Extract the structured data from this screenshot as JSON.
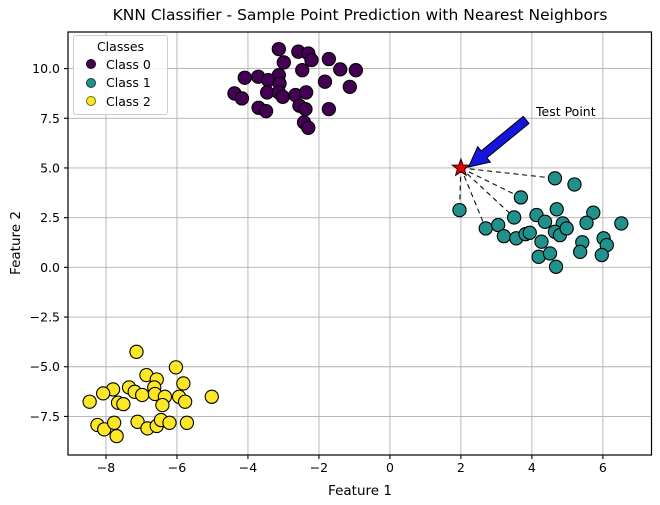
{
  "figure": {
    "title": "KNN Classifier - Sample Point Prediction with Nearest Neighbors"
  },
  "chart_data": {
    "type": "scatter",
    "title": "KNN Classifier - Sample Point Prediction with Nearest Neighbors",
    "xlabel": "Feature 1",
    "ylabel": "Feature 2",
    "xlim": [
      -9.07,
      7.37
    ],
    "ylim": [
      -9.44,
      11.84
    ],
    "grid": true,
    "grid_color": "#b0b0b0",
    "spine_color": "#000000",
    "x_ticks": {
      "values": [
        -8,
        -6,
        -4,
        -2,
        0,
        2,
        4,
        6
      ],
      "labels": [
        "−8",
        "−6",
        "−4",
        "−2",
        "0",
        "2",
        "4",
        "6"
      ]
    },
    "y_ticks": {
      "values": [
        10.0,
        7.5,
        5.0,
        2.5,
        0.0,
        -2.5,
        -5.0,
        -7.5
      ],
      "labels": [
        "10.0",
        "7.5",
        "5.0",
        "2.5",
        "0.0",
        "−2.5",
        "−5.0",
        "−7.5"
      ]
    },
    "legend": {
      "title": "Classes",
      "position": "upper left",
      "entries": [
        {
          "label": "Class 0",
          "color": "#440154"
        },
        {
          "label": "Class 1",
          "color": "#21918c"
        },
        {
          "label": "Class 2",
          "color": "#fde725"
        }
      ]
    },
    "series": [
      {
        "name": "Class 0",
        "color": "#440154",
        "marker": "circle",
        "edge_color": "#000000",
        "points": [
          [
            -3.13,
            10.98
          ],
          [
            -2.58,
            10.85
          ],
          [
            -2.3,
            10.76
          ],
          [
            -2.21,
            10.43
          ],
          [
            -1.72,
            10.48
          ],
          [
            -2.99,
            10.31
          ],
          [
            -2.47,
            9.92
          ],
          [
            -1.4,
            9.96
          ],
          [
            -0.96,
            9.92
          ],
          [
            -4.09,
            9.54
          ],
          [
            -3.71,
            9.59
          ],
          [
            -3.13,
            9.67
          ],
          [
            -3.43,
            9.42
          ],
          [
            -3.11,
            9.25
          ],
          [
            -1.83,
            9.34
          ],
          [
            -1.13,
            9.08
          ],
          [
            -4.38,
            8.75
          ],
          [
            -4.17,
            8.5
          ],
          [
            -3.46,
            8.8
          ],
          [
            -3.13,
            8.8
          ],
          [
            -3.02,
            8.58
          ],
          [
            -2.66,
            8.67
          ],
          [
            -2.36,
            8.8
          ],
          [
            -3.7,
            8.03
          ],
          [
            -3.49,
            7.86
          ],
          [
            -2.55,
            8.13
          ],
          [
            -2.38,
            7.96
          ],
          [
            -1.72,
            7.96
          ],
          [
            -2.42,
            7.29
          ],
          [
            -2.3,
            7.02
          ]
        ]
      },
      {
        "name": "Class 1",
        "color": "#21918c",
        "marker": "circle",
        "edge_color": "#000000",
        "points": [
          [
            1.96,
            2.88
          ],
          [
            2.7,
            1.96
          ],
          [
            3.05,
            2.13
          ],
          [
            3.5,
            2.51
          ],
          [
            3.69,
            3.52
          ],
          [
            4.65,
            4.48
          ],
          [
            5.2,
            4.17
          ],
          [
            4.7,
            2.92
          ],
          [
            5.73,
            2.75
          ],
          [
            5.54,
            2.24
          ],
          [
            6.52,
            2.21
          ],
          [
            4.13,
            2.63
          ],
          [
            4.37,
            2.29
          ],
          [
            4.87,
            2.21
          ],
          [
            3.21,
            1.57
          ],
          [
            3.56,
            1.46
          ],
          [
            3.82,
            1.67
          ],
          [
            3.94,
            1.74
          ],
          [
            4.27,
            1.29
          ],
          [
            4.65,
            1.79
          ],
          [
            4.79,
            1.62
          ],
          [
            4.98,
            1.96
          ],
          [
            5.42,
            1.26
          ],
          [
            6.02,
            1.46
          ],
          [
            6.11,
            1.12
          ],
          [
            4.19,
            0.53
          ],
          [
            4.51,
            0.7
          ],
          [
            5.36,
            0.78
          ],
          [
            5.97,
            0.62
          ],
          [
            4.68,
            0.03
          ]
        ]
      },
      {
        "name": "Class 2",
        "color": "#fde725",
        "marker": "circle",
        "edge_color": "#000000",
        "points": [
          [
            -7.14,
            -4.25
          ],
          [
            -6.03,
            -5.03
          ],
          [
            -6.86,
            -5.42
          ],
          [
            -6.57,
            -5.64
          ],
          [
            -5.82,
            -5.84
          ],
          [
            -7.8,
            -6.14
          ],
          [
            -8.08,
            -6.34
          ],
          [
            -7.35,
            -6.04
          ],
          [
            -7.19,
            -6.26
          ],
          [
            -6.98,
            -6.42
          ],
          [
            -6.64,
            -6.04
          ],
          [
            -6.62,
            -6.37
          ],
          [
            -6.34,
            -6.51
          ],
          [
            -8.46,
            -6.76
          ],
          [
            -7.66,
            -6.81
          ],
          [
            -7.51,
            -6.88
          ],
          [
            -6.41,
            -6.93
          ],
          [
            -5.94,
            -6.51
          ],
          [
            -5.77,
            -6.76
          ],
          [
            -5.02,
            -6.51
          ],
          [
            -8.24,
            -7.93
          ],
          [
            -8.05,
            -8.15
          ],
          [
            -7.77,
            -7.82
          ],
          [
            -7.11,
            -7.77
          ],
          [
            -6.83,
            -8.1
          ],
          [
            -6.57,
            -7.98
          ],
          [
            -6.45,
            -7.68
          ],
          [
            -6.21,
            -7.82
          ],
          [
            -7.7,
            -8.49
          ],
          [
            -5.72,
            -7.82
          ]
        ]
      }
    ],
    "test_point": {
      "x": 2.0,
      "y": 5.0,
      "marker": "star",
      "color": "#e00000",
      "edge_color": "#300000"
    },
    "neighbor_lines": {
      "style": "dashed",
      "color": "#111111",
      "endpoints": [
        [
          1.96,
          2.88
        ],
        [
          2.7,
          1.96
        ],
        [
          3.5,
          2.51
        ],
        [
          3.69,
          3.52
        ],
        [
          4.65,
          4.48
        ]
      ]
    },
    "annotation": {
      "text": "Test Point",
      "text_xy": [
        4.1,
        7.8
      ],
      "arrow_tip_xy": [
        2.15,
        4.95
      ],
      "arrow_color": "#1515dd",
      "arrow_edge_color": "#000000"
    }
  }
}
